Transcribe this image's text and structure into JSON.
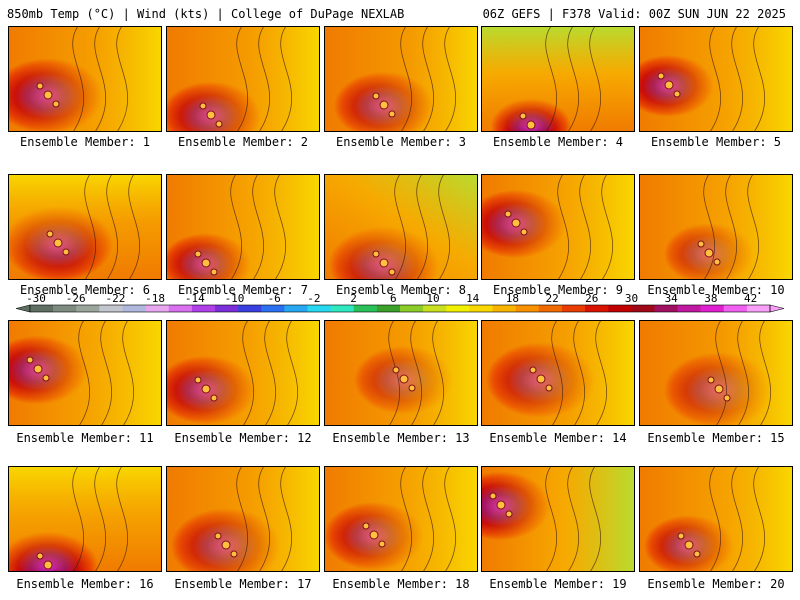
{
  "header": {
    "title": "850mb Temp (°C) | Wind (kts) | College of DuPage NEXLAB",
    "run_info": "06Z GEFS | F378 Valid: 00Z SUN JUN 22 2025"
  },
  "colorbar": {
    "tick_labels": [
      "-30",
      "-26",
      "-22",
      "-18",
      "-14",
      "-10",
      "-6",
      "-2",
      "2",
      "6",
      "10",
      "14",
      "18",
      "22",
      "26",
      "30",
      "34",
      "38",
      "42"
    ],
    "colors": [
      "#5f6f63",
      "#7d8b80",
      "#9aa59c",
      "#c4c6cf",
      "#b0b8dc",
      "#e8a8f0",
      "#d870f0",
      "#b040e8",
      "#7a2fd8",
      "#3a40e0",
      "#2a70f0",
      "#28a8f0",
      "#28d8f0",
      "#30e8c0",
      "#2ac05a",
      "#3aa02a",
      "#8ccc28",
      "#c8e020",
      "#f0f000",
      "#f8d800",
      "#f8b400",
      "#f89000",
      "#f06a00",
      "#e83c00",
      "#d81400",
      "#c00000",
      "#a00818",
      "#a01060",
      "#c018a0",
      "#e020d0",
      "#f060f0",
      "#f8a0f8"
    ]
  },
  "members": [
    {
      "label": "Ensemble Member: 1"
    },
    {
      "label": "Ensemble Member: 2"
    },
    {
      "label": "Ensemble Member: 3"
    },
    {
      "label": "Ensemble Member: 4"
    },
    {
      "label": "Ensemble Member: 5"
    },
    {
      "label": "Ensemble Member: 6"
    },
    {
      "label": "Ensemble Member: 7"
    },
    {
      "label": "Ensemble Member: 8"
    },
    {
      "label": "Ensemble Member: 9"
    },
    {
      "label": "Ensemble Member: 10"
    },
    {
      "label": "Ensemble Member: 11"
    },
    {
      "label": "Ensemble Member: 12"
    },
    {
      "label": "Ensemble Member: 13"
    },
    {
      "label": "Ensemble Member: 14"
    },
    {
      "label": "Ensemble Member: 15"
    },
    {
      "label": "Ensemble Member: 16"
    },
    {
      "label": "Ensemble Member: 17"
    },
    {
      "label": "Ensemble Member: 18"
    },
    {
      "label": "Ensemble Member: 19"
    },
    {
      "label": "Ensemble Member: 20"
    }
  ]
}
